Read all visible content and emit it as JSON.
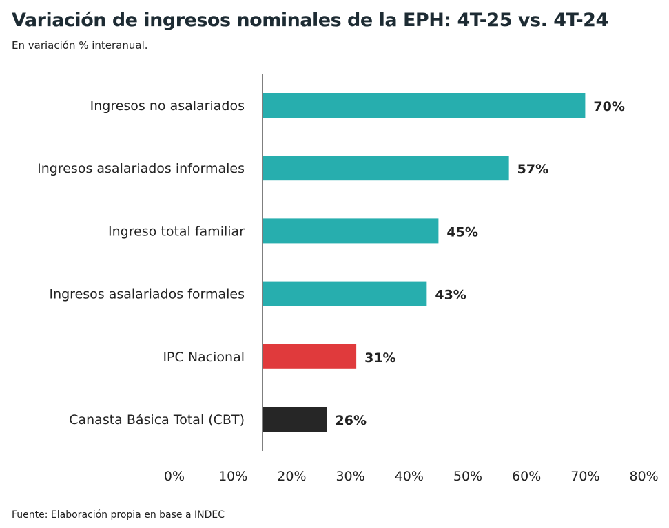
{
  "chart_data": {
    "type": "bar",
    "orientation": "horizontal",
    "title": "Variación de ingresos nominales de la EPH: 4T-25 vs. 4T-24",
    "subtitle": "En variación % interanual.",
    "source": "Fuente: Elaboración propia en base a INDEC",
    "categories": [
      "Ingresos no asalariados",
      "Ingresos asalariados informales",
      "Ingreso total familiar",
      "Ingresos asalariados formales",
      "IPC Nacional",
      "Canasta Básica Total (CBT)"
    ],
    "values": [
      70,
      57,
      45,
      43,
      31,
      26
    ],
    "data_labels": [
      "70%",
      "57%",
      "45%",
      "43%",
      "31%",
      "26%"
    ],
    "colors": [
      "#27aeae",
      "#27aeae",
      "#27aeae",
      "#27aeae",
      "#e03a3c",
      "#262626"
    ],
    "xlim": [
      0,
      80
    ],
    "xticks": [
      0,
      10,
      20,
      30,
      40,
      50,
      60,
      70,
      80
    ],
    "xtick_labels": [
      "0%",
      "10%",
      "20%",
      "30%",
      "40%",
      "50%",
      "60%",
      "70%",
      "80%"
    ],
    "grid": false,
    "legend": "none"
  }
}
